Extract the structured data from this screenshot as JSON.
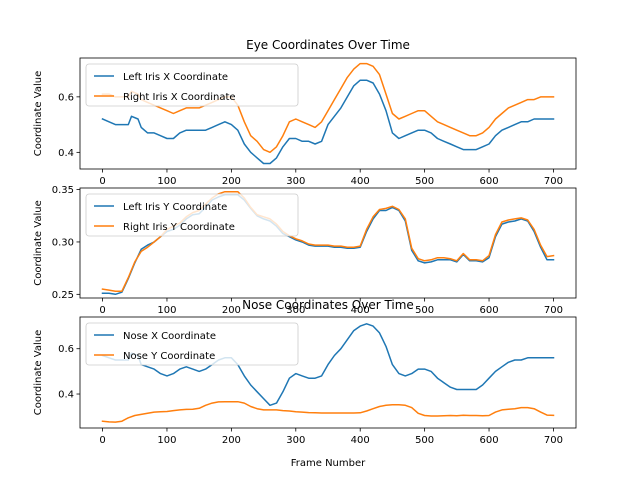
{
  "chart_data": [
    {
      "type": "line",
      "title": "Eye Coordinates Over Time",
      "xlabel": "",
      "ylabel": "Coordinate Value",
      "xlim": [
        -35,
        735
      ],
      "ylim": [
        0.34,
        0.74
      ],
      "xticks": [
        0,
        100,
        200,
        300,
        400,
        500,
        600,
        700
      ],
      "yticks": [
        0.4,
        0.6
      ],
      "ytick_labels": [
        "0.4",
        "0.6"
      ],
      "legend": "upper-left",
      "series": [
        {
          "name": "Left Iris X Coordinate",
          "color": "#1f77b4",
          "x": [
            0,
            10,
            20,
            30,
            40,
            45,
            55,
            60,
            70,
            80,
            90,
            100,
            110,
            120,
            130,
            140,
            150,
            160,
            170,
            180,
            190,
            200,
            210,
            220,
            230,
            240,
            250,
            260,
            270,
            280,
            290,
            300,
            310,
            320,
            330,
            340,
            350,
            360,
            370,
            380,
            390,
            400,
            410,
            420,
            430,
            440,
            450,
            460,
            470,
            480,
            490,
            500,
            510,
            520,
            530,
            540,
            550,
            560,
            570,
            580,
            590,
            600,
            610,
            620,
            630,
            640,
            650,
            660,
            670,
            680,
            690,
            700
          ],
          "y": [
            0.52,
            0.51,
            0.5,
            0.5,
            0.5,
            0.53,
            0.52,
            0.49,
            0.47,
            0.47,
            0.46,
            0.45,
            0.45,
            0.47,
            0.48,
            0.48,
            0.48,
            0.48,
            0.49,
            0.5,
            0.51,
            0.5,
            0.48,
            0.43,
            0.4,
            0.38,
            0.36,
            0.36,
            0.38,
            0.42,
            0.45,
            0.45,
            0.44,
            0.44,
            0.43,
            0.44,
            0.5,
            0.53,
            0.56,
            0.6,
            0.64,
            0.66,
            0.66,
            0.65,
            0.61,
            0.55,
            0.47,
            0.45,
            0.46,
            0.47,
            0.48,
            0.48,
            0.47,
            0.45,
            0.44,
            0.43,
            0.42,
            0.41,
            0.41,
            0.41,
            0.42,
            0.43,
            0.46,
            0.48,
            0.49,
            0.5,
            0.51,
            0.51,
            0.52,
            0.52,
            0.52,
            0.52
          ]
        },
        {
          "name": "Right Iris X Coordinate",
          "color": "#ff7f0e",
          "x": [
            0,
            10,
            20,
            30,
            40,
            45,
            55,
            60,
            70,
            80,
            90,
            100,
            110,
            120,
            130,
            140,
            150,
            160,
            170,
            180,
            190,
            200,
            210,
            220,
            230,
            240,
            250,
            260,
            270,
            280,
            290,
            300,
            310,
            320,
            330,
            340,
            350,
            360,
            370,
            380,
            390,
            400,
            410,
            420,
            430,
            440,
            450,
            460,
            470,
            480,
            490,
            500,
            510,
            520,
            530,
            540,
            550,
            560,
            570,
            580,
            590,
            600,
            610,
            620,
            630,
            640,
            650,
            660,
            670,
            680,
            690,
            700
          ],
          "y": [
            0.61,
            0.61,
            0.6,
            0.6,
            0.6,
            0.62,
            0.61,
            0.59,
            0.58,
            0.57,
            0.56,
            0.55,
            0.54,
            0.55,
            0.56,
            0.56,
            0.56,
            0.57,
            0.58,
            0.59,
            0.6,
            0.6,
            0.57,
            0.51,
            0.46,
            0.44,
            0.41,
            0.4,
            0.42,
            0.46,
            0.51,
            0.52,
            0.51,
            0.5,
            0.49,
            0.51,
            0.55,
            0.59,
            0.63,
            0.67,
            0.7,
            0.72,
            0.72,
            0.71,
            0.68,
            0.61,
            0.54,
            0.52,
            0.53,
            0.54,
            0.55,
            0.55,
            0.53,
            0.51,
            0.5,
            0.49,
            0.48,
            0.47,
            0.46,
            0.46,
            0.47,
            0.49,
            0.52,
            0.54,
            0.56,
            0.57,
            0.58,
            0.59,
            0.59,
            0.6,
            0.6,
            0.6
          ]
        }
      ]
    },
    {
      "type": "line",
      "title": "",
      "xlabel": "",
      "ylabel": "Coordinate Value",
      "xlim": [
        -35,
        735
      ],
      "ylim": [
        0.2465,
        0.3515
      ],
      "xticks": [
        0,
        100,
        200,
        300,
        400,
        500,
        600,
        700
      ],
      "yticks": [
        0.25,
        0.3,
        0.35
      ],
      "ytick_labels": [
        "0.25",
        "0.30",
        "0.35"
      ],
      "legend": "upper-left",
      "series": [
        {
          "name": "Left Iris Y Coordinate",
          "color": "#1f77b4",
          "x": [
            0,
            10,
            20,
            30,
            40,
            50,
            60,
            70,
            80,
            90,
            100,
            110,
            120,
            130,
            140,
            150,
            160,
            170,
            180,
            190,
            200,
            210,
            220,
            230,
            240,
            250,
            260,
            270,
            280,
            290,
            300,
            310,
            320,
            330,
            340,
            350,
            360,
            370,
            380,
            390,
            400,
            410,
            420,
            430,
            440,
            450,
            460,
            470,
            480,
            490,
            500,
            510,
            520,
            530,
            540,
            550,
            560,
            570,
            580,
            590,
            600,
            610,
            620,
            630,
            640,
            650,
            660,
            670,
            680,
            690,
            700
          ],
          "y": [
            0.251,
            0.251,
            0.25,
            0.252,
            0.265,
            0.28,
            0.293,
            0.297,
            0.3,
            0.305,
            0.31,
            0.312,
            0.316,
            0.322,
            0.326,
            0.327,
            0.333,
            0.34,
            0.343,
            0.345,
            0.345,
            0.345,
            0.34,
            0.332,
            0.325,
            0.322,
            0.32,
            0.315,
            0.308,
            0.305,
            0.302,
            0.3,
            0.297,
            0.296,
            0.296,
            0.296,
            0.295,
            0.295,
            0.294,
            0.294,
            0.295,
            0.31,
            0.322,
            0.33,
            0.33,
            0.333,
            0.33,
            0.32,
            0.292,
            0.282,
            0.28,
            0.281,
            0.283,
            0.283,
            0.283,
            0.281,
            0.288,
            0.282,
            0.282,
            0.281,
            0.285,
            0.305,
            0.317,
            0.319,
            0.32,
            0.322,
            0.32,
            0.31,
            0.295,
            0.283,
            0.283
          ]
        },
        {
          "name": "Right Iris Y Coordinate",
          "color": "#ff7f0e",
          "x": [
            0,
            10,
            20,
            30,
            40,
            50,
            60,
            70,
            80,
            90,
            100,
            110,
            120,
            130,
            140,
            150,
            160,
            170,
            180,
            190,
            200,
            210,
            220,
            230,
            240,
            250,
            260,
            270,
            280,
            290,
            300,
            310,
            320,
            330,
            340,
            350,
            360,
            370,
            380,
            390,
            400,
            410,
            420,
            430,
            440,
            450,
            460,
            470,
            480,
            490,
            500,
            510,
            520,
            530,
            540,
            550,
            560,
            570,
            580,
            590,
            600,
            610,
            620,
            630,
            640,
            650,
            660,
            670,
            680,
            690,
            700
          ],
          "y": [
            0.255,
            0.254,
            0.253,
            0.253,
            0.266,
            0.281,
            0.291,
            0.295,
            0.3,
            0.305,
            0.312,
            0.315,
            0.318,
            0.324,
            0.328,
            0.33,
            0.336,
            0.342,
            0.346,
            0.348,
            0.348,
            0.348,
            0.342,
            0.333,
            0.326,
            0.324,
            0.322,
            0.317,
            0.31,
            0.306,
            0.303,
            0.301,
            0.298,
            0.297,
            0.297,
            0.297,
            0.296,
            0.296,
            0.295,
            0.295,
            0.296,
            0.312,
            0.324,
            0.331,
            0.332,
            0.334,
            0.331,
            0.322,
            0.294,
            0.284,
            0.282,
            0.283,
            0.285,
            0.285,
            0.284,
            0.282,
            0.289,
            0.283,
            0.283,
            0.282,
            0.287,
            0.307,
            0.319,
            0.321,
            0.322,
            0.323,
            0.321,
            0.312,
            0.297,
            0.286,
            0.287
          ]
        }
      ]
    },
    {
      "type": "line",
      "title": "Nose Coordinates Over Time",
      "xlabel": "Frame Number",
      "ylabel": "Coordinate Value",
      "xlim": [
        -35,
        735
      ],
      "ylim": [
        0.25,
        0.74
      ],
      "xticks": [
        0,
        100,
        200,
        300,
        400,
        500,
        600,
        700
      ],
      "yticks": [
        0.4,
        0.6
      ],
      "ytick_labels": [
        "0.4",
        "0.6"
      ],
      "legend": "upper-left",
      "series": [
        {
          "name": "Nose X Coordinate",
          "color": "#1f77b4",
          "x": [
            0,
            10,
            20,
            30,
            40,
            45,
            55,
            60,
            70,
            80,
            90,
            100,
            110,
            120,
            130,
            140,
            150,
            160,
            170,
            180,
            190,
            200,
            210,
            220,
            230,
            240,
            250,
            260,
            270,
            280,
            290,
            300,
            310,
            320,
            330,
            340,
            350,
            360,
            370,
            380,
            390,
            400,
            410,
            420,
            430,
            440,
            450,
            460,
            470,
            480,
            490,
            500,
            510,
            520,
            530,
            540,
            550,
            560,
            570,
            580,
            590,
            600,
            610,
            620,
            630,
            640,
            650,
            660,
            670,
            680,
            690,
            700
          ],
          "y": [
            0.57,
            0.56,
            0.55,
            0.55,
            0.55,
            0.58,
            0.57,
            0.53,
            0.52,
            0.51,
            0.49,
            0.48,
            0.49,
            0.51,
            0.52,
            0.51,
            0.5,
            0.51,
            0.53,
            0.55,
            0.56,
            0.56,
            0.53,
            0.48,
            0.44,
            0.41,
            0.38,
            0.35,
            0.36,
            0.41,
            0.47,
            0.49,
            0.48,
            0.47,
            0.47,
            0.48,
            0.53,
            0.57,
            0.6,
            0.64,
            0.68,
            0.7,
            0.71,
            0.7,
            0.67,
            0.61,
            0.53,
            0.49,
            0.48,
            0.49,
            0.51,
            0.51,
            0.5,
            0.47,
            0.45,
            0.43,
            0.42,
            0.42,
            0.42,
            0.42,
            0.44,
            0.47,
            0.5,
            0.52,
            0.54,
            0.55,
            0.55,
            0.56,
            0.56,
            0.56,
            0.56,
            0.56
          ]
        },
        {
          "name": "Nose Y Coordinate",
          "color": "#ff7f0e",
          "x": [
            0,
            10,
            20,
            30,
            40,
            50,
            60,
            70,
            80,
            90,
            100,
            110,
            120,
            130,
            140,
            150,
            160,
            170,
            180,
            190,
            200,
            210,
            220,
            230,
            240,
            250,
            260,
            270,
            280,
            290,
            300,
            310,
            320,
            330,
            340,
            350,
            360,
            370,
            380,
            390,
            400,
            410,
            420,
            430,
            440,
            450,
            460,
            470,
            480,
            490,
            500,
            510,
            520,
            530,
            540,
            550,
            560,
            570,
            580,
            590,
            600,
            610,
            620,
            630,
            640,
            650,
            660,
            670,
            680,
            690,
            700
          ],
          "y": [
            0.28,
            0.277,
            0.276,
            0.28,
            0.295,
            0.305,
            0.31,
            0.315,
            0.32,
            0.322,
            0.323,
            0.327,
            0.33,
            0.332,
            0.333,
            0.337,
            0.35,
            0.36,
            0.365,
            0.366,
            0.366,
            0.366,
            0.36,
            0.345,
            0.335,
            0.33,
            0.33,
            0.33,
            0.327,
            0.325,
            0.322,
            0.32,
            0.318,
            0.317,
            0.316,
            0.316,
            0.316,
            0.316,
            0.316,
            0.316,
            0.317,
            0.325,
            0.335,
            0.345,
            0.35,
            0.353,
            0.353,
            0.35,
            0.34,
            0.315,
            0.305,
            0.303,
            0.303,
            0.304,
            0.305,
            0.304,
            0.306,
            0.305,
            0.305,
            0.304,
            0.305,
            0.32,
            0.33,
            0.333,
            0.335,
            0.34,
            0.34,
            0.335,
            0.32,
            0.307,
            0.306
          ]
        }
      ]
    }
  ]
}
